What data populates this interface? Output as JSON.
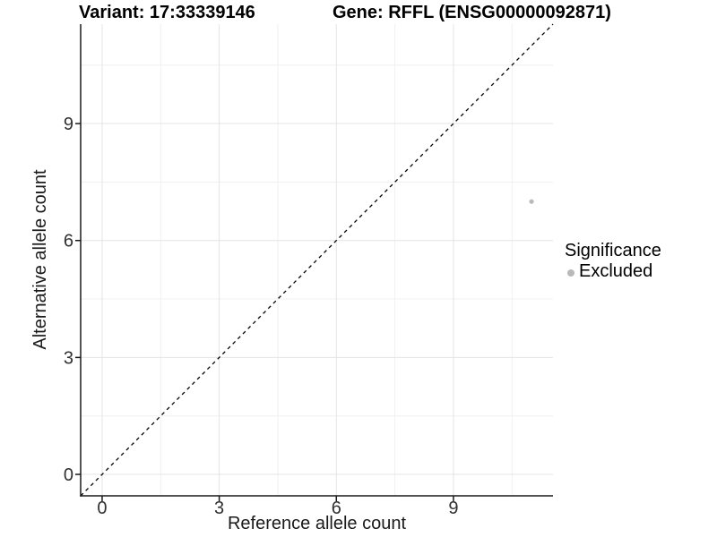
{
  "title": {
    "left": "Variant: 17:33339146",
    "right": "Gene: RFFL (ENSG00000092871)"
  },
  "chart_data": {
    "type": "scatter",
    "xlabel": "Reference allele count",
    "ylabel": "Alternative allele count",
    "xlim": [
      -0.55,
      11.55
    ],
    "ylim": [
      -0.55,
      11.55
    ],
    "major_ticks": [
      0,
      3,
      6,
      9
    ],
    "minor_gridlines": [
      1.5,
      4.5,
      7.5,
      10.5
    ],
    "grid": "on",
    "points": [
      {
        "x": 11,
        "y": 7,
        "series": "Excluded"
      }
    ],
    "reference_line": {
      "type": "identity",
      "style": "dashed",
      "color": "#000000"
    },
    "legend": {
      "position": "right",
      "title": "Significance",
      "items": [
        {
          "label": "Excluded",
          "color": "#b9b9b9"
        }
      ]
    },
    "style": {
      "major_grid_color": "#e4e4e4",
      "minor_grid_color": "#f0f0f0",
      "axis_color": "#1a1a1a",
      "tick_label_color": "#303030",
      "background": "#ffffff"
    }
  }
}
